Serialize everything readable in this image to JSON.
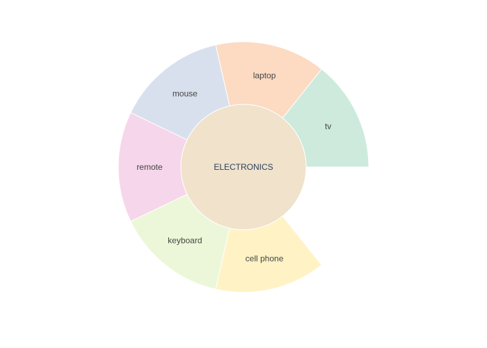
{
  "chart_data": {
    "type": "sunburst",
    "title": "",
    "root": {
      "label": "ELECTRONICS",
      "color": "#f0e2cb"
    },
    "children": [
      {
        "label": "tv",
        "value": 1,
        "radius": 1.0,
        "color": "#cdeadd"
      },
      {
        "label": "laptop",
        "value": 1,
        "radius": 1.0,
        "color": "#fcdbc2"
      },
      {
        "label": "mouse",
        "value": 1,
        "radius": 1.0,
        "color": "#d9e0ed"
      },
      {
        "label": "remote",
        "value": 1,
        "radius": 1.0,
        "color": "#f6d6ea"
      },
      {
        "label": "keyboard",
        "value": 1,
        "radius": 1.0,
        "color": "#ecf7d9"
      },
      {
        "label": "cell phone",
        "value": 1,
        "radius": 1.0,
        "color": "#fff2c5"
      }
    ],
    "gap_after": "cell phone"
  }
}
